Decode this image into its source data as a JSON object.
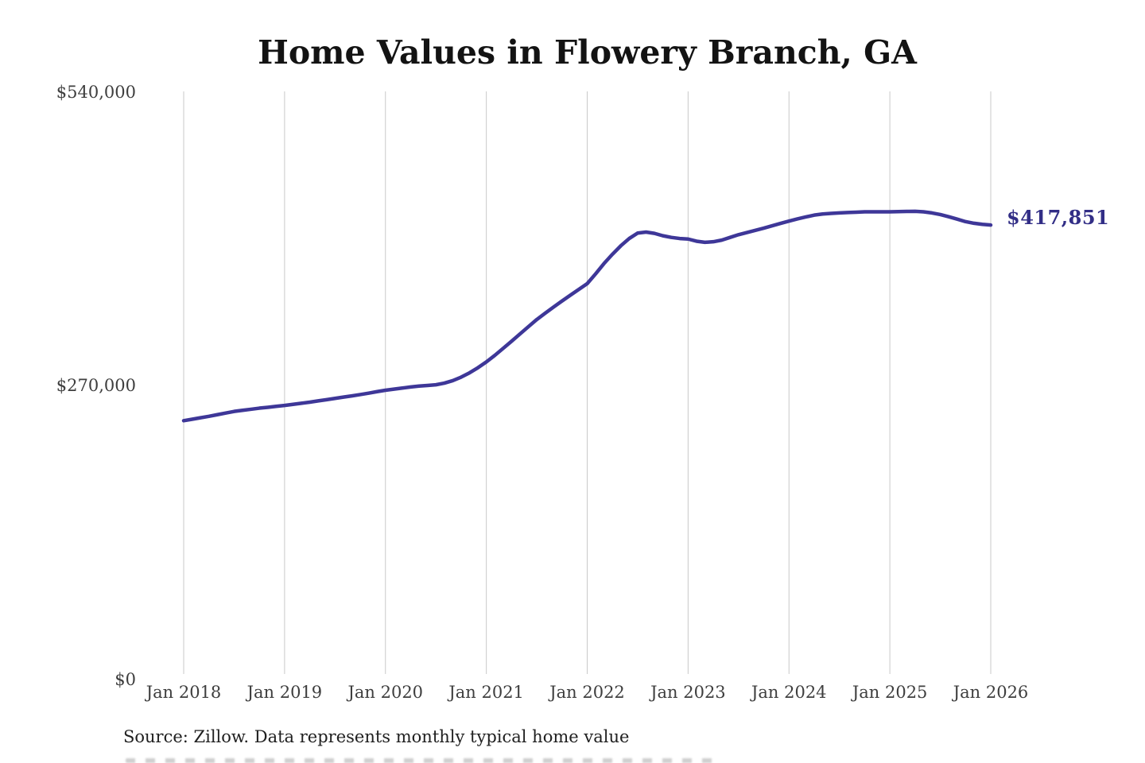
{
  "title": "Home Values in Flowery Branch, GA",
  "source_note": "Source: Zillow. Data represents monthly typical home value",
  "colors": {
    "line": "#3e3798",
    "end_label": "#322e86",
    "grid": "#c9c9c9",
    "title_text": "#131313",
    "axis_text": "#3e3e3e",
    "background": "#ffffff"
  },
  "end_label": "$417,851",
  "chart_data": {
    "type": "line",
    "title": "Home Values in Flowery Branch, GA",
    "xlabel": "",
    "ylabel": "",
    "ylim": [
      0,
      540000
    ],
    "y_ticks": [
      0,
      270000,
      540000
    ],
    "y_tick_labels": [
      "$0",
      "$270,000",
      "$540,000"
    ],
    "x_tick_labels": [
      "Jan 2018",
      "Jan 2019",
      "Jan 2020",
      "Jan 2021",
      "Jan 2022",
      "Jan 2023",
      "Jan 2024",
      "Jan 2025",
      "Jan 2026"
    ],
    "grid": "vertical-only",
    "legend": "none",
    "annotation": {
      "text": "$417,851",
      "value": 417851
    },
    "series": [
      {
        "name": "Monthly typical home value",
        "x": [
          "2018-01",
          "2018-02",
          "2018-03",
          "2018-04",
          "2018-05",
          "2018-06",
          "2018-07",
          "2018-08",
          "2018-09",
          "2018-10",
          "2018-11",
          "2018-12",
          "2019-01",
          "2019-02",
          "2019-03",
          "2019-04",
          "2019-05",
          "2019-06",
          "2019-07",
          "2019-08",
          "2019-09",
          "2019-10",
          "2019-11",
          "2019-12",
          "2020-01",
          "2020-02",
          "2020-03",
          "2020-04",
          "2020-05",
          "2020-06",
          "2020-07",
          "2020-08",
          "2020-09",
          "2020-10",
          "2020-11",
          "2020-12",
          "2021-01",
          "2021-02",
          "2021-03",
          "2021-04",
          "2021-05",
          "2021-06",
          "2021-07",
          "2021-08",
          "2021-09",
          "2021-10",
          "2021-11",
          "2021-12",
          "2022-01",
          "2022-02",
          "2022-03",
          "2022-04",
          "2022-05",
          "2022-06",
          "2022-07",
          "2022-08",
          "2022-09",
          "2022-10",
          "2022-11",
          "2022-12",
          "2023-01",
          "2023-02",
          "2023-03",
          "2023-04",
          "2023-05",
          "2023-06",
          "2023-07",
          "2023-08",
          "2023-09",
          "2023-10",
          "2023-11",
          "2023-12",
          "2024-01",
          "2024-02",
          "2024-03",
          "2024-04",
          "2024-05",
          "2024-06",
          "2024-07",
          "2024-08",
          "2024-09",
          "2024-10",
          "2024-11",
          "2024-12",
          "2025-01",
          "2025-02",
          "2025-03",
          "2025-04",
          "2025-05",
          "2025-06",
          "2025-07",
          "2025-08",
          "2025-09",
          "2025-10",
          "2025-11",
          "2025-12",
          "2026-01"
        ],
        "values": [
          238000,
          239300,
          240700,
          242000,
          243500,
          245000,
          246500,
          247500,
          248500,
          249500,
          250300,
          251200,
          252000,
          253000,
          254000,
          255000,
          256200,
          257300,
          258500,
          259700,
          260800,
          262000,
          263300,
          264700,
          266000,
          267000,
          268000,
          269000,
          269800,
          270400,
          271000,
          272500,
          274800,
          278000,
          282000,
          286700,
          292000,
          298000,
          304500,
          311000,
          317700,
          324400,
          331000,
          336800,
          342500,
          348000,
          353400,
          358700,
          364000,
          373000,
          382500,
          391000,
          398800,
          405500,
          410500,
          411400,
          410200,
          408000,
          406500,
          405500,
          405000,
          403000,
          402000,
          402500,
          404000,
          406500,
          409000,
          411000,
          413000,
          415000,
          417200,
          419400,
          421500,
          423500,
          425300,
          427000,
          428000,
          428600,
          429000,
          429400,
          429700,
          430000,
          430000,
          430000,
          430000,
          430200,
          430400,
          430500,
          430000,
          429000,
          427500,
          425500,
          423300,
          421000,
          419500,
          418500,
          417851
        ]
      }
    ]
  }
}
